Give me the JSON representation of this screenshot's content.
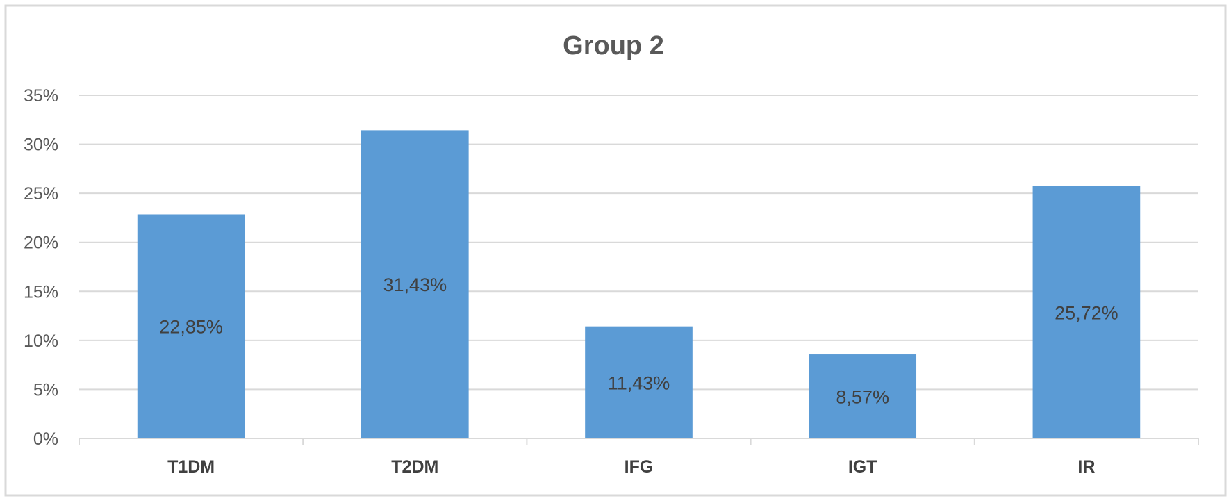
{
  "chart_data": {
    "type": "bar",
    "title": "Group 2",
    "xlabel": "",
    "ylabel": "",
    "categories": [
      "T1DM",
      "T2DM",
      "IFG",
      "IGT",
      "IR"
    ],
    "values": [
      22.85,
      31.43,
      11.43,
      8.57,
      25.72
    ],
    "data_labels": [
      "22,85%",
      "31,43%",
      "11,43%",
      "8,57%",
      "25,72%"
    ],
    "ylim": [
      0,
      35
    ],
    "y_ticks": [
      0,
      5,
      10,
      15,
      20,
      25,
      30,
      35
    ],
    "y_tick_labels": [
      "0%",
      "5%",
      "10%",
      "15%",
      "20%",
      "25%",
      "30%",
      "35%"
    ],
    "grid": true,
    "legend": "none",
    "bar_color": "#5b9bd5",
    "frame_color": "#d9d9d9"
  }
}
